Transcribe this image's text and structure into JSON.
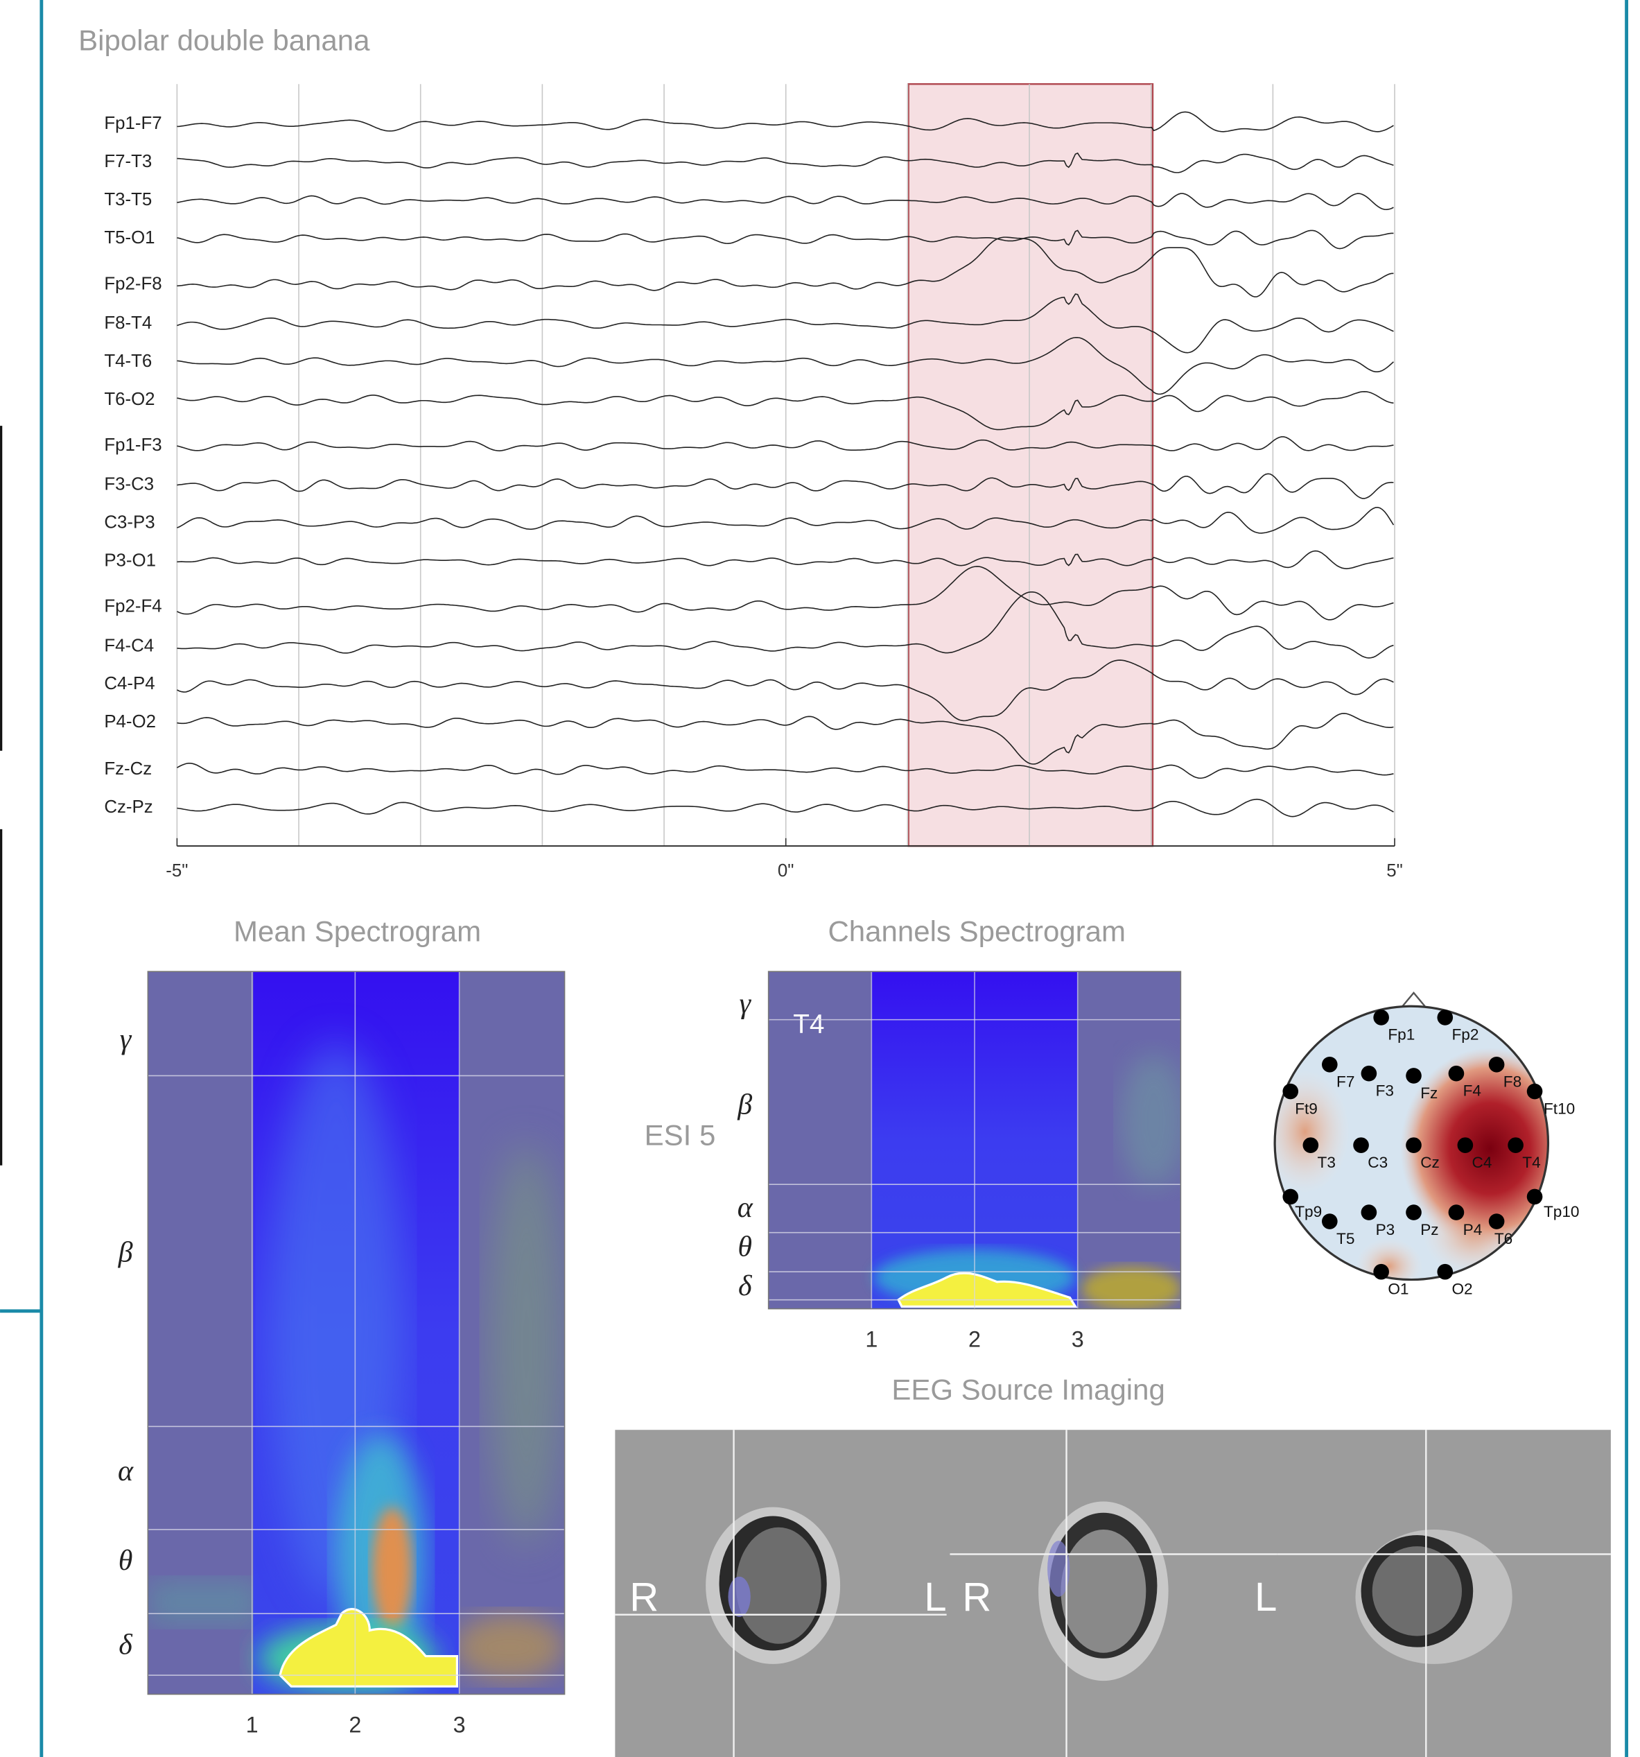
{
  "title": "Bipolar double banana",
  "channels": [
    "Fp1-F7",
    "F7-T3",
    "T3-T5",
    "T5-O1",
    "Fp2-F8",
    "F8-T4",
    "T4-T6",
    "T6-O2",
    "Fp1-F3",
    "F3-C3",
    "C3-P3",
    "P3-O1",
    "Fp2-F4",
    "F4-C4",
    "C4-P4",
    "P4-O2",
    "Fz-Cz",
    "Cz-Pz"
  ],
  "time_axis": [
    "-5\"",
    "0\"",
    "5\""
  ],
  "mean_spectrogram": {
    "title": "Mean Spectrogram",
    "bands": [
      "γ",
      "β",
      "α",
      "θ",
      "δ"
    ],
    "x_ticks": [
      "1",
      "2",
      "3"
    ]
  },
  "channels_spectrogram": {
    "title": "Channels Spectrogram",
    "channel": "T4",
    "label": "ESI 5",
    "bands": [
      "γ",
      "β",
      "α",
      "θ",
      "δ"
    ],
    "x_ticks": [
      "1",
      "2",
      "3"
    ]
  },
  "topomap": {
    "electrodes": [
      "Fp1",
      "Fp2",
      "F7",
      "F3",
      "Fz",
      "F4",
      "F8",
      "Ft9",
      "Ft10",
      "T3",
      "C3",
      "Cz",
      "C4",
      "T4",
      "Tp9",
      "T5",
      "P3",
      "Pz",
      "P4",
      "T6",
      "Tp10",
      "O1",
      "O2"
    ]
  },
  "source_imaging": {
    "title": "EEG Source Imaging",
    "orientation_labels": [
      "R",
      "L",
      "R",
      "L"
    ]
  }
}
